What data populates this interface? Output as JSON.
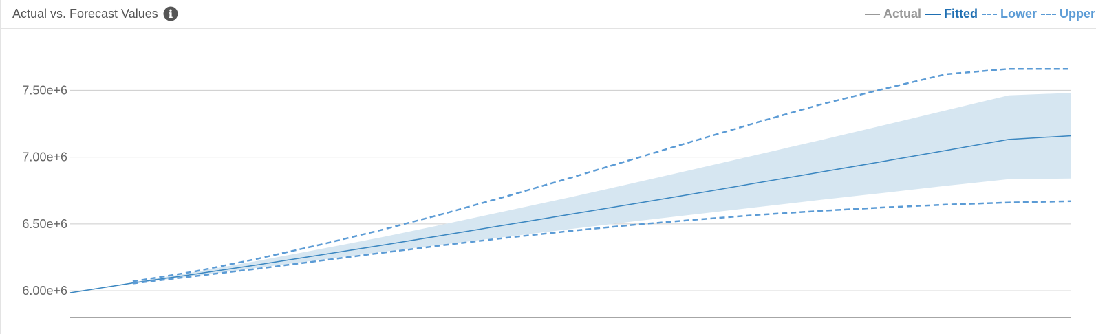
{
  "header": {
    "title": "Actual vs. Forecast Values",
    "info_icon": "info-circle-icon"
  },
  "legend": [
    {
      "key": "actual",
      "label": "Actual",
      "color": "#999999",
      "style": "solid"
    },
    {
      "key": "fitted",
      "label": "Fitted",
      "color": "#1f6fb2",
      "style": "solid"
    },
    {
      "key": "lower",
      "label": "Lower",
      "color": "#5b9bd5",
      "style": "dashed"
    },
    {
      "key": "upper",
      "label": "Upper",
      "color": "#5b9bd5",
      "style": "dashed"
    }
  ],
  "chart_data": {
    "type": "line",
    "title": "Actual vs. Forecast Values",
    "xlabel": "",
    "ylabel": "",
    "ylim": [
      5800000,
      7800000
    ],
    "y_ticks": [
      6000000,
      6500000,
      7000000,
      7500000
    ],
    "y_tick_labels": [
      "6.00e+6",
      "6.50e+6",
      "7.00e+6",
      "7.50e+6"
    ],
    "x": [
      0,
      1,
      2,
      3,
      4,
      5,
      6,
      7,
      8,
      9,
      10,
      11,
      12,
      13,
      14,
      15,
      16
    ],
    "grid": true,
    "legend_position": "top-right",
    "series": [
      {
        "name": "Fitted",
        "color": "#3a86c0",
        "style": "solid",
        "values": [
          5985000,
          6058000,
          6125000,
          6195000,
          6268000,
          6342000,
          6418000,
          6495000,
          6572000,
          6650000,
          6728000,
          6808000,
          6888000,
          6968000,
          7050000,
          7132000,
          7160000
        ]
      },
      {
        "name": "Lower",
        "color": "#5b9bd5",
        "style": "dashed",
        "values": [
          null,
          6055000,
          6110000,
          6165000,
          6225000,
          6285000,
          6343000,
          6398000,
          6448000,
          6493000,
          6532000,
          6568000,
          6598000,
          6623000,
          6644000,
          6660000,
          6670000
        ]
      },
      {
        "name": "Upper",
        "color": "#5b9bd5",
        "style": "dashed",
        "values": [
          null,
          6070000,
          6145000,
          6240000,
          6345000,
          6458000,
          6580000,
          6710000,
          6845000,
          6985000,
          7125000,
          7262000,
          7395000,
          7510000,
          7620000,
          7660000,
          7660000
        ]
      }
    ],
    "band": {
      "color": "#d6e6f1",
      "lower": [
        5985000,
        6054000,
        6111000,
        6172000,
        6232000,
        6292000,
        6348000,
        6405000,
        6462000,
        6518000,
        6572000,
        6626000,
        6680000,
        6732000,
        6785000,
        6835000,
        6840000
      ],
      "upper": [
        5985000,
        6064000,
        6141000,
        6224000,
        6312000,
        6402000,
        6500000,
        6600000,
        6700000,
        6805000,
        6912000,
        7020000,
        7128000,
        7238000,
        7350000,
        7462000,
        7480000
      ]
    }
  }
}
